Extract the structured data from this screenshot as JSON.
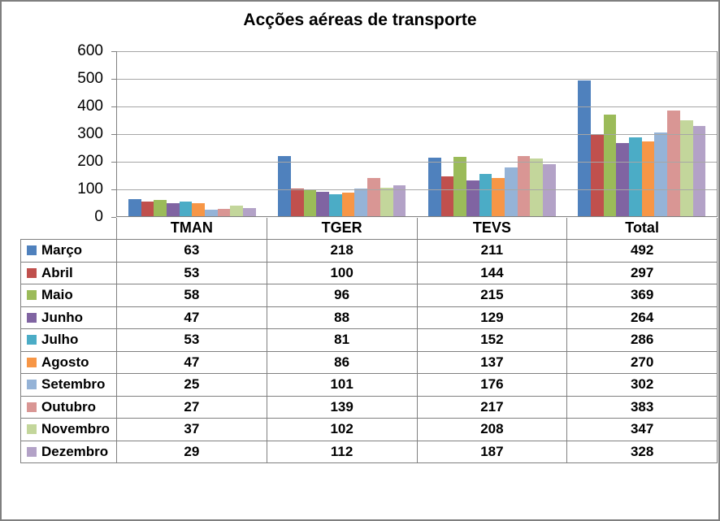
{
  "chart_data": {
    "type": "bar",
    "title": "Acções aéreas de transporte",
    "categories": [
      "TMAN",
      "TGER",
      "TEVS",
      "Total"
    ],
    "series": [
      {
        "name": "Março",
        "color": "#4F81BD",
        "values": [
          63,
          218,
          211,
          492
        ]
      },
      {
        "name": "Abril",
        "color": "#C0504D",
        "values": [
          53,
          100,
          144,
          297
        ]
      },
      {
        "name": "Maio",
        "color": "#9BBB59",
        "values": [
          58,
          96,
          215,
          369
        ]
      },
      {
        "name": "Junho",
        "color": "#8064A2",
        "values": [
          47,
          88,
          129,
          264
        ]
      },
      {
        "name": "Julho",
        "color": "#4BACC6",
        "values": [
          53,
          81,
          152,
          286
        ]
      },
      {
        "name": "Agosto",
        "color": "#F79646",
        "values": [
          47,
          86,
          137,
          270
        ]
      },
      {
        "name": "Setembro",
        "color": "#95B3D7",
        "values": [
          25,
          101,
          176,
          302
        ]
      },
      {
        "name": "Outubro",
        "color": "#D99694",
        "values": [
          27,
          139,
          217,
          383
        ]
      },
      {
        "name": "Novembro",
        "color": "#C3D69B",
        "values": [
          37,
          102,
          208,
          347
        ]
      },
      {
        "name": "Dezembro",
        "color": "#B3A2C7",
        "values": [
          29,
          112,
          187,
          328
        ]
      }
    ],
    "y_axis": {
      "min": 0,
      "max": 600,
      "step": 100,
      "ticks": [
        "600",
        "500",
        "400",
        "300",
        "200",
        "100",
        "0"
      ]
    },
    "grid": true,
    "legend_position": "data-table",
    "colors": {
      "gridline": "#a6a6a6",
      "axis": "#808080",
      "frame_border": "#7f7f7f",
      "text": "#000000",
      "background": "#ffffff"
    }
  }
}
